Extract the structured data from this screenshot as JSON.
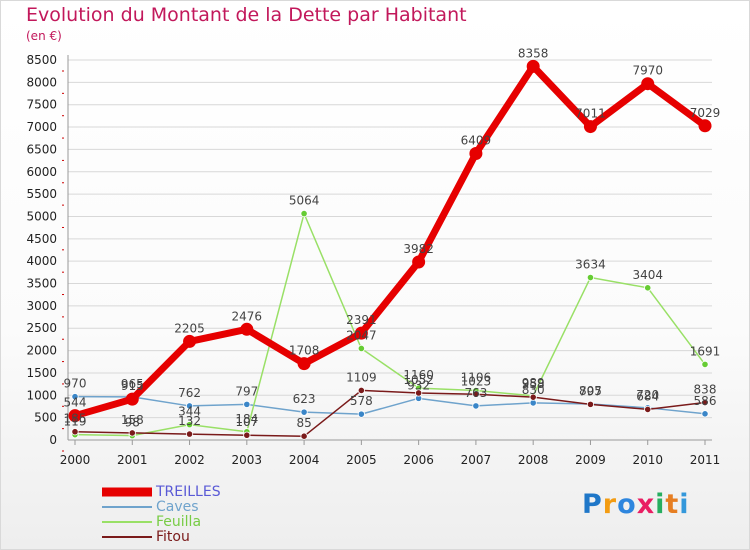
{
  "header": {
    "title": "Evolution du Montant de la Dette par Habitant",
    "unit": "(en €)"
  },
  "colors": {
    "title": "#c2185b",
    "grid": "#d8d8d8",
    "axis_text": "#222222",
    "axis_tick_red": "#cc0000"
  },
  "logo": {
    "letters": [
      "P",
      "r",
      "o",
      "x",
      "i",
      "t",
      "i"
    ],
    "colors": [
      "#1f77c8",
      "#f39c12",
      "#2e86de",
      "#e91e63",
      "#27ae60",
      "#e67e22",
      "#3498db"
    ]
  },
  "chart_data": {
    "type": "line",
    "title": "Evolution du Montant de la Dette par Habitant",
    "subtitle": "(en €)",
    "xlabel": "",
    "ylabel": "",
    "x": [
      2000,
      2001,
      2002,
      2003,
      2004,
      2005,
      2006,
      2007,
      2008,
      2009,
      2010,
      2011
    ],
    "ylim": [
      0,
      8500
    ],
    "yticks": [
      0,
      500,
      1000,
      1500,
      2000,
      2500,
      3000,
      3500,
      4000,
      4500,
      5000,
      5500,
      6000,
      6500,
      7000,
      7500,
      8000,
      8500
    ],
    "grid": true,
    "legend_position": "bottom-left",
    "series": [
      {
        "name": "TREILLES",
        "color": "#e60000",
        "marker_color": "#e60000",
        "legend_text_color": "#5a5ad6",
        "width": 7,
        "values": [
          544,
          915,
          2205,
          2476,
          1708,
          2391,
          3982,
          6409,
          8358,
          7011,
          7970,
          7029
        ],
        "labels": [
          "544",
          "915",
          "2205",
          "2476",
          "1708",
          "2391",
          "3982",
          "6409",
          "8358",
          "7011",
          "7970",
          "7029"
        ]
      },
      {
        "name": "Caves",
        "color": "#6fa3cc",
        "marker_color": "#3a86c8",
        "legend_text_color": "#6fa3cc",
        "width": 1.5,
        "values": [
          970,
          965,
          762,
          797,
          623,
          578,
          932,
          763,
          830,
          805,
          720,
          586
        ],
        "labels": [
          "970",
          "965",
          "762",
          "797",
          "623",
          "578",
          "932",
          "763",
          "830",
          "805",
          "720",
          "586"
        ]
      },
      {
        "name": "Feuilla",
        "color": "#99e066",
        "marker_color": "#66cc33",
        "legend_text_color": "#77cc44",
        "width": 1.5,
        "values": [
          119,
          98,
          344,
          184,
          5064,
          2047,
          1160,
          1106,
          989,
          3634,
          3404,
          1691
        ],
        "labels": [
          "119",
          "98",
          "344",
          "184",
          "5064",
          "2047",
          "1160",
          "1106",
          "989",
          "3634",
          "3404",
          "1691"
        ]
      },
      {
        "name": "Fitou",
        "color": "#7a1a1a",
        "marker_color": "#7a1a1a",
        "legend_text_color": "#7a1a1a",
        "width": 1.5,
        "values": [
          185,
          158,
          132,
          107,
          85,
          1109,
          1052,
          1023,
          958,
          797,
          684,
          838
        ],
        "labels": [
          "185",
          "158",
          "132",
          "107",
          "85",
          "1109",
          "1052",
          "1023",
          "958",
          "797",
          "684",
          "838"
        ]
      }
    ]
  }
}
